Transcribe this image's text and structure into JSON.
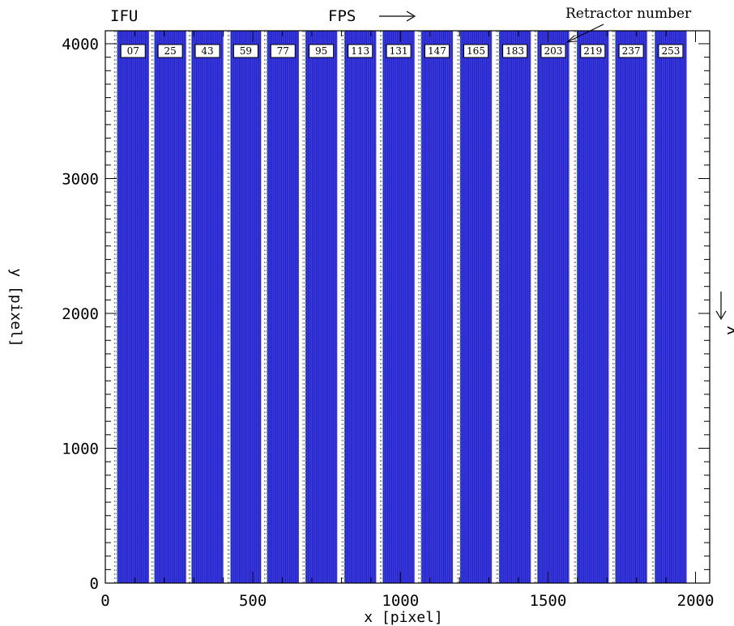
{
  "chart_data": {
    "type": "table",
    "xlabel": "x  [pixel]",
    "ylabel": "y [pixel]",
    "xlim": [
      0,
      2048
    ],
    "ylim": [
      0,
      4096
    ],
    "x_ticks": [
      0,
      500,
      1000,
      1500,
      2000
    ],
    "y_ticks": [
      0,
      1000,
      2000,
      3000,
      4000
    ],
    "grid": false,
    "annotations": {
      "top_left": "IFU",
      "top_center": "FPS",
      "top_right": "Retractor number",
      "right_side": "λ"
    },
    "colors": {
      "fiber_block": "#3a3ae8",
      "fiber_line": "#1a1aa0",
      "gap_red": "#e03030",
      "gap_green": "#30a030",
      "gap_cyan": "#30b0d0"
    },
    "retractors": [
      {
        "label": "07",
        "x_start": 40,
        "x_end": 148
      },
      {
        "label": "25",
        "x_start": 166,
        "x_end": 274
      },
      {
        "label": "43",
        "x_start": 292,
        "x_end": 400
      },
      {
        "label": "59",
        "x_start": 424,
        "x_end": 528
      },
      {
        "label": "77",
        "x_start": 548,
        "x_end": 656
      },
      {
        "label": "95",
        "x_start": 678,
        "x_end": 786
      },
      {
        "label": "113",
        "x_start": 810,
        "x_end": 918
      },
      {
        "label": "131",
        "x_start": 940,
        "x_end": 1048
      },
      {
        "label": "147",
        "x_start": 1070,
        "x_end": 1178
      },
      {
        "label": "165",
        "x_start": 1202,
        "x_end": 1310
      },
      {
        "label": "183",
        "x_start": 1334,
        "x_end": 1442
      },
      {
        "label": "203",
        "x_start": 1464,
        "x_end": 1572
      },
      {
        "label": "219",
        "x_start": 1598,
        "x_end": 1706
      },
      {
        "label": "237",
        "x_start": 1728,
        "x_end": 1836
      },
      {
        "label": "253",
        "x_start": 1862,
        "x_end": 1970
      }
    ]
  }
}
